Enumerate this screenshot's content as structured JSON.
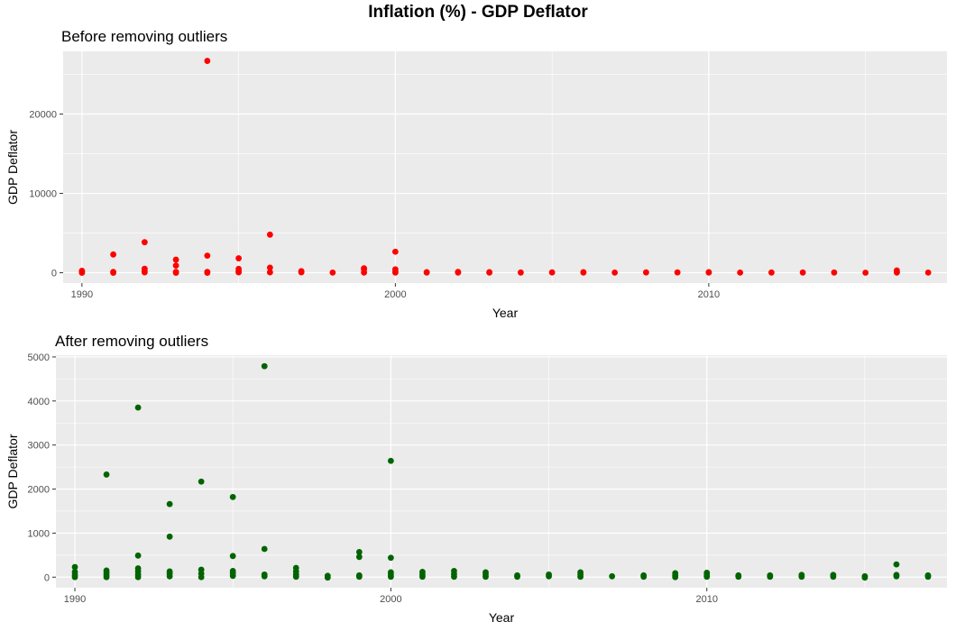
{
  "title": "Inflation (%) - GDP Deflator",
  "chart_data": [
    {
      "type": "scatter",
      "title": "Before removing outliers",
      "xlabel": "Year",
      "ylabel": "GDP Deflator",
      "xlim": [
        1989.4,
        2017.6
      ],
      "ylim": [
        -1300,
        27900
      ],
      "x_ticks": [
        1990,
        2000,
        2010
      ],
      "x_tick_labels": [
        "1990",
        "2000",
        "2010"
      ],
      "y_ticks": [
        0,
        10000,
        20000
      ],
      "y_tick_labels": [
        "0",
        "10000",
        "20000"
      ],
      "grid": true,
      "color": "#ff0000",
      "points": [
        [
          1990,
          0
        ],
        [
          1990,
          100
        ],
        [
          1990,
          250
        ],
        [
          1991,
          2300
        ],
        [
          1991,
          100
        ],
        [
          1991,
          0
        ],
        [
          1992,
          3850
        ],
        [
          1992,
          500
        ],
        [
          1992,
          200
        ],
        [
          1992,
          50
        ],
        [
          1993,
          1650
        ],
        [
          1993,
          900
        ],
        [
          1993,
          100
        ],
        [
          1993,
          0
        ],
        [
          1994,
          26700
        ],
        [
          1994,
          2150
        ],
        [
          1994,
          100
        ],
        [
          1994,
          0
        ],
        [
          1995,
          1820
        ],
        [
          1995,
          480
        ],
        [
          1995,
          200
        ],
        [
          1995,
          50
        ],
        [
          1996,
          4800
        ],
        [
          1996,
          640
        ],
        [
          1996,
          50
        ],
        [
          1997,
          200
        ],
        [
          1997,
          50
        ],
        [
          1998,
          20
        ],
        [
          1999,
          560
        ],
        [
          1999,
          450
        ],
        [
          1999,
          30
        ],
        [
          2000,
          2650
        ],
        [
          2000,
          430
        ],
        [
          2000,
          100
        ],
        [
          2000,
          20
        ],
        [
          2001,
          80
        ],
        [
          2001,
          20
        ],
        [
          2002,
          100
        ],
        [
          2002,
          20
        ],
        [
          2003,
          80
        ],
        [
          2003,
          20
        ],
        [
          2004,
          30
        ],
        [
          2005,
          40
        ],
        [
          2006,
          80
        ],
        [
          2006,
          20
        ],
        [
          2007,
          20
        ],
        [
          2008,
          40
        ],
        [
          2009,
          40
        ],
        [
          2010,
          80
        ],
        [
          2010,
          20
        ],
        [
          2011,
          20
        ],
        [
          2012,
          30
        ],
        [
          2013,
          30
        ],
        [
          2014,
          30
        ],
        [
          2015,
          10
        ],
        [
          2016,
          290
        ],
        [
          2016,
          80
        ],
        [
          2016,
          20
        ],
        [
          2017,
          20
        ]
      ]
    },
    {
      "type": "scatter",
      "title": "After removing outliers",
      "xlabel": "Year",
      "ylabel": "GDP Deflator",
      "xlim": [
        1989.4,
        2017.6
      ],
      "ylim": [
        -240,
        5040
      ],
      "x_ticks": [
        1990,
        2000,
        2010
      ],
      "x_tick_labels": [
        "1990",
        "2000",
        "2010"
      ],
      "y_ticks": [
        0,
        1000,
        2000,
        3000,
        4000,
        5000
      ],
      "y_tick_labels": [
        "0",
        "1000",
        "2000",
        "3000",
        "4000",
        "5000"
      ],
      "grid": true,
      "color": "#006400",
      "points": [
        [
          1990,
          230
        ],
        [
          1990,
          120
        ],
        [
          1990,
          50
        ],
        [
          1990,
          0
        ],
        [
          1991,
          2330
        ],
        [
          1991,
          150
        ],
        [
          1991,
          100
        ],
        [
          1991,
          50
        ],
        [
          1991,
          0
        ],
        [
          1992,
          3850
        ],
        [
          1992,
          490
        ],
        [
          1992,
          200
        ],
        [
          1992,
          130
        ],
        [
          1992,
          60
        ],
        [
          1992,
          0
        ],
        [
          1993,
          1660
        ],
        [
          1993,
          920
        ],
        [
          1993,
          130
        ],
        [
          1993,
          80
        ],
        [
          1993,
          20
        ],
        [
          1994,
          2170
        ],
        [
          1994,
          170
        ],
        [
          1994,
          80
        ],
        [
          1994,
          0
        ],
        [
          1995,
          1820
        ],
        [
          1995,
          480
        ],
        [
          1995,
          140
        ],
        [
          1995,
          90
        ],
        [
          1995,
          30
        ],
        [
          1996,
          4790
        ],
        [
          1996,
          640
        ],
        [
          1996,
          60
        ],
        [
          1996,
          20
        ],
        [
          1997,
          210
        ],
        [
          1997,
          130
        ],
        [
          1997,
          60
        ],
        [
          1997,
          10
        ],
        [
          1998,
          30
        ],
        [
          1998,
          -10
        ],
        [
          1999,
          570
        ],
        [
          1999,
          460
        ],
        [
          1999,
          40
        ],
        [
          1999,
          10
        ],
        [
          2000,
          2640
        ],
        [
          2000,
          440
        ],
        [
          2000,
          110
        ],
        [
          2000,
          60
        ],
        [
          2000,
          10
        ],
        [
          2001,
          120
        ],
        [
          2001,
          60
        ],
        [
          2001,
          10
        ],
        [
          2002,
          140
        ],
        [
          2002,
          70
        ],
        [
          2002,
          10
        ],
        [
          2003,
          110
        ],
        [
          2003,
          60
        ],
        [
          2003,
          10
        ],
        [
          2004,
          40
        ],
        [
          2004,
          10
        ],
        [
          2005,
          60
        ],
        [
          2005,
          20
        ],
        [
          2006,
          110
        ],
        [
          2006,
          60
        ],
        [
          2006,
          10
        ],
        [
          2007,
          20
        ],
        [
          2008,
          40
        ],
        [
          2008,
          10
        ],
        [
          2009,
          90
        ],
        [
          2009,
          40
        ],
        [
          2009,
          0
        ],
        [
          2010,
          100
        ],
        [
          2010,
          50
        ],
        [
          2010,
          10
        ],
        [
          2011,
          40
        ],
        [
          2011,
          10
        ],
        [
          2012,
          40
        ],
        [
          2012,
          10
        ],
        [
          2013,
          50
        ],
        [
          2013,
          10
        ],
        [
          2014,
          50
        ],
        [
          2014,
          10
        ],
        [
          2015,
          20
        ],
        [
          2015,
          -10
        ],
        [
          2016,
          290
        ],
        [
          2016,
          50
        ],
        [
          2016,
          20
        ],
        [
          2017,
          40
        ],
        [
          2017,
          10
        ]
      ]
    }
  ]
}
